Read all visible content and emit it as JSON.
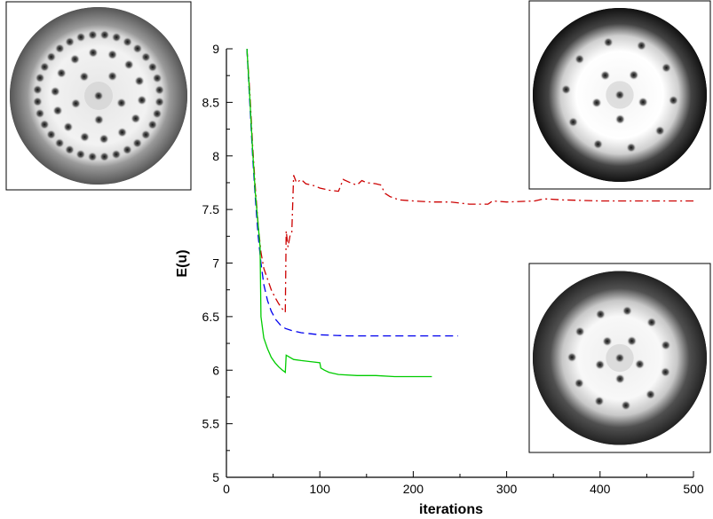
{
  "chart_data": {
    "type": "line",
    "xlabel": "iterations",
    "ylabel": "E(u)",
    "xlim": [
      0,
      500
    ],
    "ylim": [
      5,
      9
    ],
    "x_ticks": [
      "0",
      "100",
      "200",
      "300",
      "400",
      "500"
    ],
    "y_ticks": [
      "5",
      "5.5",
      "6",
      "6.5",
      "7",
      "7.5",
      "8",
      "8.5",
      "9"
    ],
    "grid": false,
    "legend": "none",
    "series": [
      {
        "color": "#cc0000",
        "style": "dash-dot",
        "points": [
          [
            22,
            9.0
          ],
          [
            25,
            8.6
          ],
          [
            28,
            8.1
          ],
          [
            31,
            7.7
          ],
          [
            34,
            7.35
          ],
          [
            37,
            7.1
          ],
          [
            40,
            6.95
          ],
          [
            44,
            6.85
          ],
          [
            48,
            6.75
          ],
          [
            52,
            6.68
          ],
          [
            56,
            6.62
          ],
          [
            60,
            6.57
          ],
          [
            63,
            6.54
          ],
          [
            64,
            7.3
          ],
          [
            66,
            7.15
          ],
          [
            68,
            7.25
          ],
          [
            70,
            7.28
          ],
          [
            72,
            7.82
          ],
          [
            75,
            7.75
          ],
          [
            80,
            7.78
          ],
          [
            85,
            7.74
          ],
          [
            90,
            7.73
          ],
          [
            95,
            7.72
          ],
          [
            100,
            7.7
          ],
          [
            110,
            7.68
          ],
          [
            120,
            7.67
          ],
          [
            125,
            7.78
          ],
          [
            130,
            7.76
          ],
          [
            135,
            7.74
          ],
          [
            140,
            7.73
          ],
          [
            145,
            7.77
          ],
          [
            150,
            7.75
          ],
          [
            160,
            7.74
          ],
          [
            165,
            7.73
          ],
          [
            170,
            7.65
          ],
          [
            175,
            7.62
          ],
          [
            185,
            7.59
          ],
          [
            200,
            7.58
          ],
          [
            220,
            7.57
          ],
          [
            240,
            7.57
          ],
          [
            260,
            7.55
          ],
          [
            280,
            7.55
          ],
          [
            285,
            7.58
          ],
          [
            300,
            7.57
          ],
          [
            330,
            7.58
          ],
          [
            340,
            7.6
          ],
          [
            360,
            7.59
          ],
          [
            400,
            7.58
          ],
          [
            450,
            7.58
          ],
          [
            500,
            7.58
          ]
        ]
      },
      {
        "color": "#0000ee",
        "style": "dashed",
        "points": [
          [
            22,
            9.0
          ],
          [
            25,
            8.5
          ],
          [
            28,
            8.0
          ],
          [
            31,
            7.6
          ],
          [
            34,
            7.25
          ],
          [
            37,
            7.0
          ],
          [
            40,
            6.8
          ],
          [
            44,
            6.65
          ],
          [
            48,
            6.55
          ],
          [
            53,
            6.47
          ],
          [
            58,
            6.42
          ],
          [
            63,
            6.39
          ],
          [
            70,
            6.37
          ],
          [
            80,
            6.35
          ],
          [
            100,
            6.33
          ],
          [
            130,
            6.32
          ],
          [
            160,
            6.32
          ],
          [
            200,
            6.32
          ],
          [
            248,
            6.32
          ]
        ]
      },
      {
        "color": "#00cc00",
        "style": "solid",
        "points": [
          [
            22,
            9.0
          ],
          [
            25,
            8.55
          ],
          [
            28,
            8.05
          ],
          [
            31,
            7.65
          ],
          [
            34,
            7.35
          ],
          [
            36,
            7.15
          ],
          [
            37,
            6.5
          ],
          [
            40,
            6.3
          ],
          [
            44,
            6.2
          ],
          [
            48,
            6.12
          ],
          [
            52,
            6.07
          ],
          [
            56,
            6.03
          ],
          [
            60,
            6.0
          ],
          [
            63,
            5.98
          ],
          [
            64,
            6.14
          ],
          [
            68,
            6.12
          ],
          [
            72,
            6.1
          ],
          [
            80,
            6.09
          ],
          [
            90,
            6.08
          ],
          [
            100,
            6.07
          ],
          [
            101,
            6.02
          ],
          [
            105,
            6.0
          ],
          [
            110,
            5.98
          ],
          [
            120,
            5.96
          ],
          [
            140,
            5.95
          ],
          [
            160,
            5.95
          ],
          [
            180,
            5.94
          ],
          [
            200,
            5.94
          ],
          [
            220,
            5.94
          ]
        ]
      }
    ],
    "insets": [
      {
        "position": "top-left",
        "rings": [
          {
            "r": 0.69,
            "count": 32
          },
          {
            "r": 0.49,
            "count": 14
          },
          {
            "r": 0.27,
            "count": 5
          },
          {
            "r": 0.0,
            "count": 1
          }
        ],
        "outer_band": 0.81,
        "band_color": "#555555"
      },
      {
        "position": "top-right",
        "rings": [
          {
            "r": 0.62,
            "count": 10
          },
          {
            "r": 0.28,
            "count": 5
          },
          {
            "r": 0.0,
            "count": 1
          }
        ],
        "outer_band": 0.76,
        "band_color": "#111111"
      },
      {
        "position": "bottom-right",
        "rings": [
          {
            "r": 0.55,
            "count": 11
          },
          {
            "r": 0.24,
            "count": 5
          },
          {
            "r": 0.0,
            "count": 1
          }
        ],
        "outer_band": 0.74,
        "band_color": "#222222"
      }
    ]
  }
}
